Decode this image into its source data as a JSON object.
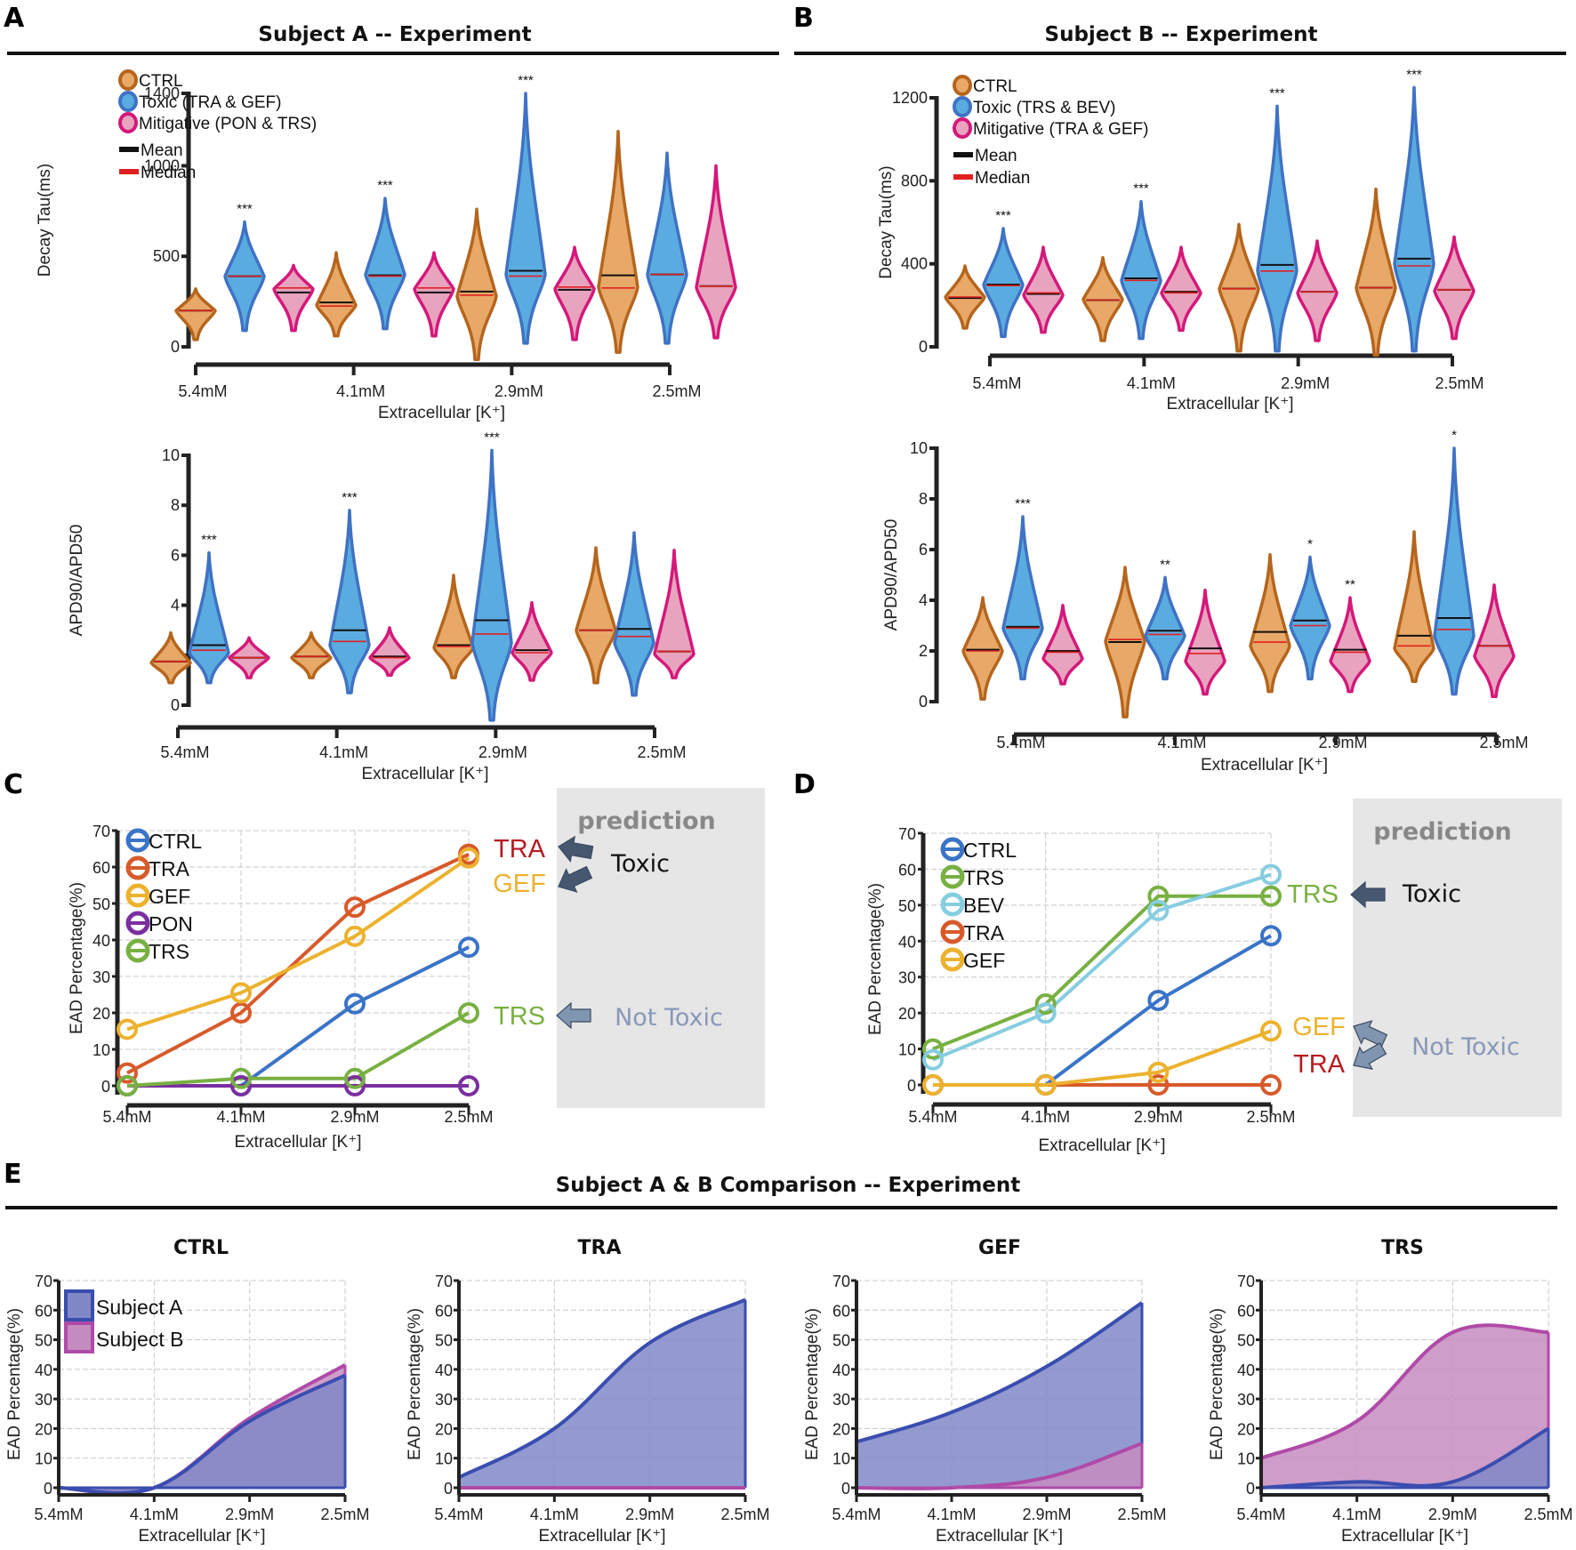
{
  "figure": {
    "panels": {
      "A": {
        "letter": "A",
        "title": "Subject A -- Experiment"
      },
      "B": {
        "letter": "B",
        "title": "Subject B -- Experiment"
      },
      "C": {
        "letter": "C"
      },
      "D": {
        "letter": "D"
      },
      "E": {
        "letter": "E",
        "title": "Subject A & B Comparison -- Experiment"
      }
    },
    "colors": {
      "ctrl_fill": "#e8a867",
      "ctrl_edge": "#b5651d",
      "toxic_fill": "#5aace0",
      "toxic_edge": "#3f72c4",
      "mitig_fill": "#e8a3bf",
      "mitig_edge": "#d4187a",
      "mean": "#111111",
      "median": "#e02020",
      "line_ctrl": "#3a74c8",
      "line_tra": "#d85a2a",
      "line_gef": "#ecb22e",
      "line_pon": "#7a2fa0",
      "line_trs": "#78b042",
      "line_bev": "#86cde0",
      "subjA_fill": "#8088c8",
      "subjA_edge": "#3a4db0",
      "subjB_fill": "#c58cc0",
      "subjB_edge": "#b04aa8",
      "pred_bg": "#e6e6e6",
      "arrow_dark": "#465870",
      "arrow_light": "#8096b0",
      "tra_text": "#b51a22",
      "gef_text": "#ecb22e",
      "trs_text": "#78b042",
      "nottoxic_text": "#8898b8"
    }
  },
  "violin_legend_A": {
    "groups": [
      "CTRL",
      "Toxic (TRA & GEF)",
      "Mitigative (PON & TRS)"
    ],
    "stats": [
      "Mean",
      "Median"
    ]
  },
  "violin_legend_B": {
    "groups": [
      "CTRL",
      "Toxic (TRS & BEV)",
      "Mitigative (TRA & GEF)"
    ],
    "stats": [
      "Mean",
      "Median"
    ]
  },
  "prediction": {
    "title": "prediction",
    "toxic": "Toxic",
    "not_toxic": "Not Toxic"
  },
  "chart_data": [
    {
      "id": "A-top",
      "type": "violin",
      "title": "Subject A -- Experiment",
      "xlabel": "Extracellular [K⁺]",
      "ylabel": "Decay Tau(ms)",
      "ylim": [
        0,
        1400
      ],
      "yticks": [
        0,
        500,
        1000,
        1400
      ],
      "categories": [
        "5.4mM",
        "4.1mM",
        "2.9mM",
        "2.5mM"
      ],
      "series": [
        {
          "name": "CTRL",
          "min": [
            40,
            60,
            -70,
            -30
          ],
          "max": [
            320,
            520,
            760,
            1190
          ],
          "mean": [
            200,
            245,
            305,
            395
          ],
          "median": [
            200,
            225,
            285,
            325
          ],
          "center": [
            200,
            230,
            280,
            330
          ]
        },
        {
          "name": "Toxic",
          "min": [
            90,
            100,
            20,
            20
          ],
          "max": [
            690,
            820,
            1400,
            1070
          ],
          "mean": [
            390,
            395,
            420,
            400
          ],
          "median": [
            390,
            390,
            390,
            400
          ],
          "center": [
            390,
            400,
            400,
            400
          ]
        },
        {
          "name": "Mitigative",
          "min": [
            90,
            60,
            40,
            50
          ],
          "max": [
            450,
            520,
            550,
            1000
          ],
          "mean": [
            300,
            300,
            315,
            335
          ],
          "median": [
            325,
            325,
            330,
            335
          ],
          "center": [
            320,
            320,
            320,
            330
          ]
        }
      ],
      "significance": [
        "***",
        "***",
        "***",
        ""
      ]
    },
    {
      "id": "B-top",
      "type": "violin",
      "title": "Subject B -- Experiment",
      "xlabel": "Extracellular [K⁺]",
      "ylabel": "Decay Tau(ms)",
      "ylim": [
        0,
        1200
      ],
      "yticks": [
        0,
        400,
        800,
        1200
      ],
      "categories": [
        "5.4mM",
        "4.1mM",
        "2.9mM",
        "2.5mM"
      ],
      "series": [
        {
          "name": "CTRL",
          "min": [
            90,
            30,
            -20,
            -40
          ],
          "max": [
            390,
            430,
            590,
            760
          ],
          "mean": [
            235,
            225,
            280,
            285
          ],
          "median": [
            240,
            225,
            280,
            285
          ],
          "center": [
            240,
            230,
            280,
            285
          ]
        },
        {
          "name": "Toxic",
          "min": [
            50,
            40,
            -20,
            -20
          ],
          "max": [
            570,
            700,
            1160,
            1250
          ],
          "mean": [
            300,
            330,
            395,
            425
          ],
          "median": [
            295,
            320,
            365,
            390
          ],
          "center": [
            300,
            320,
            370,
            400
          ]
        },
        {
          "name": "Mitigative",
          "min": [
            70,
            80,
            30,
            40
          ],
          "max": [
            480,
            480,
            510,
            530
          ],
          "mean": [
            255,
            265,
            265,
            275
          ],
          "median": [
            260,
            260,
            265,
            275
          ],
          "center": [
            250,
            260,
            260,
            270
          ]
        }
      ],
      "significance": [
        "***",
        "***",
        "***",
        "***"
      ]
    },
    {
      "id": "A-bottom",
      "type": "violin",
      "xlabel": "Extracellular [K⁺]",
      "ylabel": "APD90/APD50",
      "ylim": [
        0,
        10
      ],
      "yticks": [
        0,
        2,
        4,
        6,
        8,
        10
      ],
      "categories": [
        "5.4mM",
        "4.1mM",
        "2.9mM",
        "2.5mM"
      ],
      "series": [
        {
          "name": "CTRL",
          "min": [
            0.9,
            1.1,
            1.1,
            0.9
          ],
          "max": [
            2.9,
            2.9,
            5.2,
            6.3
          ],
          "mean": [
            1.75,
            1.95,
            2.4,
            3.0
          ],
          "median": [
            1.75,
            1.95,
            2.35,
            3.0
          ],
          "center": [
            1.7,
            1.9,
            2.3,
            3.0
          ]
        },
        {
          "name": "Toxic",
          "min": [
            0.9,
            0.5,
            -0.6,
            0.4
          ],
          "max": [
            6.1,
            7.8,
            10.2,
            6.9
          ],
          "mean": [
            2.4,
            3.0,
            3.4,
            3.05
          ],
          "median": [
            2.2,
            2.55,
            2.85,
            2.75
          ],
          "center": [
            2.1,
            2.4,
            2.5,
            2.5
          ]
        },
        {
          "name": "Mitigative",
          "min": [
            1.1,
            1.2,
            1.0,
            1.1
          ],
          "max": [
            2.7,
            3.1,
            4.1,
            6.2
          ],
          "mean": [
            1.9,
            1.95,
            2.2,
            2.15
          ],
          "median": [
            1.9,
            1.9,
            2.1,
            2.15
          ],
          "center": [
            1.9,
            1.9,
            2.1,
            2.05
          ]
        }
      ],
      "significance": [
        "***",
        "***",
        "***",
        ""
      ]
    },
    {
      "id": "B-bottom",
      "type": "violin",
      "xlabel": "Extracellular [K⁺]",
      "ylabel": "APD90/APD50",
      "ylim": [
        0,
        10
      ],
      "yticks": [
        0,
        2,
        4,
        6,
        8,
        10
      ],
      "categories": [
        "5.4mM",
        "4.1mM",
        "2.9mM",
        "2.5mM"
      ],
      "series": [
        {
          "name": "CTRL",
          "min": [
            0.1,
            -0.6,
            0.4,
            0.8
          ],
          "max": [
            4.1,
            5.3,
            5.8,
            6.7
          ],
          "mean": [
            2.05,
            2.35,
            2.75,
            2.6
          ],
          "median": [
            2.0,
            2.45,
            2.35,
            2.2
          ],
          "center": [
            2.0,
            2.4,
            2.2,
            2.1
          ]
        },
        {
          "name": "Toxic",
          "min": [
            0.9,
            0.9,
            0.9,
            0.3
          ],
          "max": [
            7.3,
            4.9,
            5.7,
            10.0
          ],
          "mean": [
            2.95,
            2.8,
            3.2,
            3.3
          ],
          "median": [
            2.9,
            2.65,
            3.0,
            2.85
          ],
          "center": [
            2.9,
            2.6,
            3.0,
            2.6
          ]
        },
        {
          "name": "Mitigative",
          "min": [
            0.7,
            0.3,
            0.4,
            0.2
          ],
          "max": [
            3.8,
            4.4,
            4.1,
            4.6
          ],
          "mean": [
            2.0,
            2.1,
            2.05,
            2.2
          ],
          "median": [
            1.95,
            1.9,
            1.95,
            2.2
          ],
          "center": [
            1.7,
            1.6,
            1.6,
            1.8
          ]
        }
      ],
      "significance": [
        "***",
        "**",
        "*",
        "*"
      ],
      "significance_mitigative": [
        "",
        "",
        "**",
        ""
      ]
    },
    {
      "id": "C",
      "type": "line",
      "xlabel": "Extracellular [K⁺]",
      "ylabel": "EAD Percentage(%)",
      "ylim": [
        0,
        70
      ],
      "yticks": [
        0,
        10,
        20,
        30,
        40,
        50,
        60,
        70
      ],
      "x": [
        "5.4mM",
        "4.1mM",
        "2.9mM",
        "2.5mM"
      ],
      "grid": true,
      "legend": "top-left",
      "series": [
        {
          "name": "CTRL",
          "values": [
            0,
            0,
            22.5,
            38
          ],
          "color": "#3a74c8"
        },
        {
          "name": "TRA",
          "values": [
            3.5,
            20,
            49,
            63.5
          ],
          "color": "#d85a2a"
        },
        {
          "name": "GEF",
          "values": [
            15.5,
            25.5,
            41,
            62.5
          ],
          "color": "#ecb22e"
        },
        {
          "name": "PON",
          "values": [
            0,
            0,
            0,
            0
          ],
          "color": "#7a2fa0"
        },
        {
          "name": "TRS",
          "values": [
            0,
            2,
            2,
            20
          ],
          "color": "#78b042"
        }
      ],
      "annotations": [
        {
          "text": "TRA",
          "class": "toxic"
        },
        {
          "text": "GEF",
          "class": "toxic"
        },
        {
          "text": "TRS",
          "class": "not-toxic"
        }
      ]
    },
    {
      "id": "D",
      "type": "line",
      "xlabel": "Extracellular [K⁺]",
      "ylabel": "EAD Percentage(%)",
      "ylim": [
        0,
        70
      ],
      "yticks": [
        0,
        10,
        20,
        30,
        40,
        50,
        60,
        70
      ],
      "x": [
        "5.4mM",
        "4.1mM",
        "2.9mM",
        "2.5mM"
      ],
      "grid": true,
      "legend": "top-left",
      "series": [
        {
          "name": "CTRL",
          "values": [
            0,
            0,
            23.5,
            41.5
          ],
          "color": "#3a74c8"
        },
        {
          "name": "TRS",
          "values": [
            10,
            22.5,
            52.5,
            52.5
          ],
          "color": "#78b042"
        },
        {
          "name": "BEV",
          "values": [
            7,
            20,
            48.5,
            58.5
          ],
          "color": "#86cde0"
        },
        {
          "name": "TRA",
          "values": [
            0,
            0,
            0,
            0
          ],
          "color": "#d85a2a"
        },
        {
          "name": "GEF",
          "values": [
            0,
            0,
            3.5,
            15
          ],
          "color": "#ecb22e"
        }
      ],
      "annotations": [
        {
          "text": "TRS",
          "class": "toxic"
        },
        {
          "text": "GEF",
          "class": "not-toxic"
        },
        {
          "text": "TRA",
          "class": "not-toxic"
        }
      ]
    },
    {
      "id": "E",
      "type": "area",
      "title": "Subject A & B Comparison -- Experiment",
      "xlabel": "Extracellular [K⁺]",
      "ylabel": "EAD Percentage(%)",
      "ylim": [
        0,
        70
      ],
      "yticks": [
        0,
        10,
        20,
        30,
        40,
        50,
        60,
        70
      ],
      "x": [
        "5.4mM",
        "4.1mM",
        "2.9mM",
        "2.5mM"
      ],
      "grid": true,
      "legend": "top-left",
      "legend_entries": [
        "Subject A",
        "Subject B"
      ],
      "subplots": [
        {
          "title": "CTRL",
          "subjectA": [
            0,
            0,
            22.5,
            38
          ],
          "subjectB": [
            0,
            0,
            23.5,
            41.5
          ]
        },
        {
          "title": "TRA",
          "subjectA": [
            3.5,
            20,
            49,
            63.5
          ],
          "subjectB": [
            0,
            0,
            0,
            0
          ]
        },
        {
          "title": "GEF",
          "subjectA": [
            15.5,
            25.5,
            41,
            62.5
          ],
          "subjectB": [
            0,
            0,
            3.5,
            15
          ]
        },
        {
          "title": "TRS",
          "subjectA": [
            0,
            2,
            2,
            20
          ],
          "subjectB": [
            10,
            22.5,
            52.5,
            52.5
          ]
        }
      ]
    }
  ]
}
